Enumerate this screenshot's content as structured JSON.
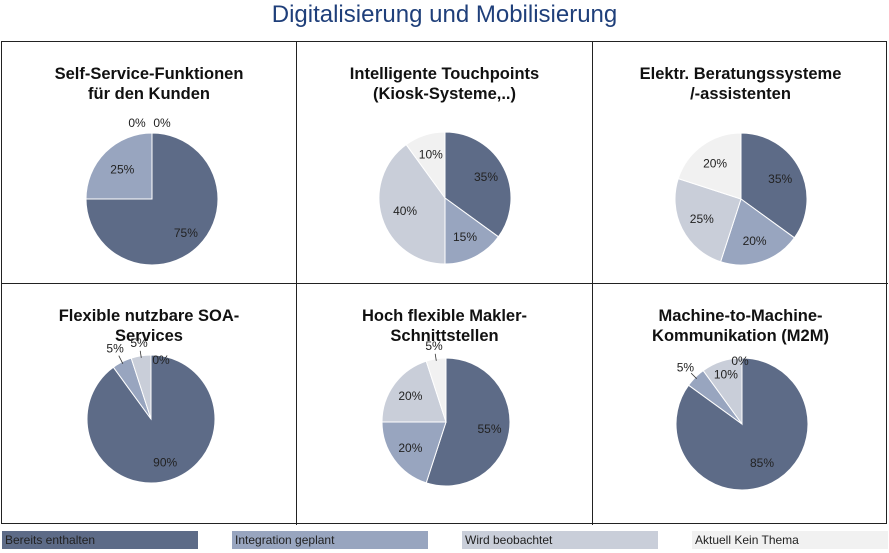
{
  "title": "Digitalisierung und Mobilisierung",
  "colors": {
    "bereits": "#5d6b87",
    "integration": "#98a5bf",
    "beobachtet": "#c9ced9",
    "keinthema": "#f1f1f1",
    "slice_stroke": "#ffffff"
  },
  "legend": [
    {
      "label": "Bereits enthalten",
      "color": "#5d6b87"
    },
    {
      "label": "Integration geplant",
      "color": "#98a5bf"
    },
    {
      "label": "Wird beobachtet",
      "color": "#c9ced9"
    },
    {
      "label": "Aktuell Kein Thema",
      "color": "#f1f1f1"
    }
  ],
  "chart_data": [
    {
      "type": "pie",
      "title_lines": [
        "Self-Service-Funktionen",
        "für den Kunden"
      ],
      "categories": [
        "Bereits enthalten",
        "Integration geplant",
        "Wird beobachtet",
        "Aktuell Kein Thema"
      ],
      "values": [
        75,
        25,
        0,
        0
      ],
      "labels": [
        "75%",
        "25%",
        "0%",
        "0%"
      ]
    },
    {
      "type": "pie",
      "title_lines": [
        "Intelligente Touchpoints",
        "(Kiosk-Systeme,..)"
      ],
      "categories": [
        "Bereits enthalten",
        "Integration geplant",
        "Wird beobachtet",
        "Aktuell Kein Thema"
      ],
      "values": [
        35,
        15,
        40,
        10
      ],
      "labels": [
        "35%",
        "15%",
        "40%",
        "10%"
      ]
    },
    {
      "type": "pie",
      "title_lines": [
        "Elektr. Beratungssysteme",
        "/-assistenten"
      ],
      "categories": [
        "Bereits enthalten",
        "Integration geplant",
        "Wird beobachtet",
        "Aktuell Kein Thema"
      ],
      "values": [
        35,
        20,
        25,
        20
      ],
      "labels": [
        "35%",
        "20%",
        "25%",
        "20%"
      ]
    },
    {
      "type": "pie",
      "title_lines": [
        "Flexible nutzbare SOA-",
        "Services"
      ],
      "categories": [
        "Bereits enthalten",
        "Integration geplant",
        "Wird beobachtet",
        "Aktuell Kein Thema"
      ],
      "values": [
        90,
        5,
        5,
        0
      ],
      "labels": [
        "90%",
        "5%",
        "5%",
        "0%"
      ]
    },
    {
      "type": "pie",
      "title_lines": [
        "Hoch flexible Makler-",
        "Schnittstellen"
      ],
      "categories": [
        "Bereits enthalten",
        "Integration geplant",
        "Wird beobachtet",
        "Aktuell Kein Thema"
      ],
      "values": [
        55,
        20,
        20,
        5
      ],
      "labels": [
        "55%",
        "20%",
        "20%",
        "5%"
      ]
    },
    {
      "type": "pie",
      "title_lines": [
        "Machine-to-Machine-",
        "Kommunikation (M2M)"
      ],
      "categories": [
        "Bereits enthalten",
        "Integration geplant",
        "Wird beobachtet",
        "Aktuell Kein Thema"
      ],
      "values": [
        85,
        5,
        10,
        0
      ],
      "labels": [
        "85%",
        "5%",
        "10%",
        "0%"
      ]
    }
  ]
}
